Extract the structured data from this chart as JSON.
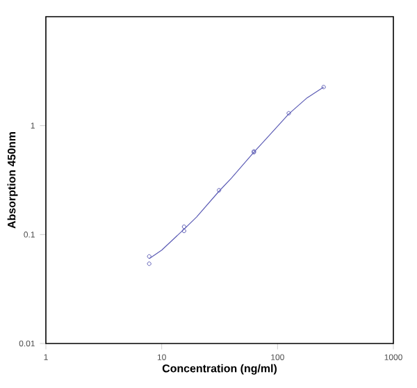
{
  "chart_data": {
    "type": "scatter",
    "xlabel": "Concentration (ng/ml)",
    "ylabel": "Absorption 450nm",
    "log": "xy",
    "xlim": [
      1,
      1000
    ],
    "ylim": [
      0.01,
      10
    ],
    "xticks": [
      1,
      10,
      100,
      1000
    ],
    "yticks": [
      0.01,
      0.1,
      1
    ],
    "grid": false,
    "marker": "circle",
    "series": [
      {
        "color": "#5a5ab4",
        "x": [
          7.8,
          7.8,
          15.6,
          15.6,
          31.25,
          62.5,
          62.5,
          125,
          250
        ],
        "values": [
          0.063,
          0.054,
          0.118,
          0.108,
          0.255,
          0.58,
          0.57,
          1.3,
          2.26
        ]
      },
      {
        "type": "line",
        "color": "#5a5ab4",
        "marker": "none",
        "line_style": "solid",
        "x": [
          7.8,
          10,
          15.6,
          20,
          31.25,
          40,
          62.5,
          80,
          125,
          180,
          250
        ],
        "values": [
          0.06,
          0.072,
          0.112,
          0.145,
          0.25,
          0.33,
          0.57,
          0.76,
          1.28,
          1.8,
          2.26
        ]
      }
    ]
  }
}
